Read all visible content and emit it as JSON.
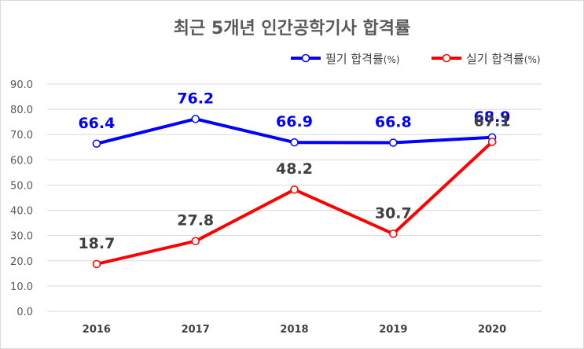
{
  "chart_data": {
    "type": "line",
    "title": "최근 5개년 인간공학기사 합격률",
    "categories": [
      "2016",
      "2017",
      "2018",
      "2019",
      "2020"
    ],
    "series": [
      {
        "name": "필기 합격률",
        "unit": "(%)",
        "color": "#0000ff",
        "label_color": "#0000ff",
        "values": [
          66.4,
          76.2,
          66.9,
          66.8,
          68.9
        ]
      },
      {
        "name": "실기 합격률",
        "unit": "(%)",
        "color": "#ff0000",
        "label_color": "#404040",
        "values": [
          18.7,
          27.8,
          48.2,
          30.7,
          67.1
        ]
      }
    ],
    "ylim": [
      0,
      90
    ],
    "yticks": [
      "0.0",
      "10.0",
      "20.0",
      "30.0",
      "40.0",
      "50.0",
      "60.0",
      "70.0",
      "80.0",
      "90.0"
    ],
    "grid": true,
    "legend_position": "top-right",
    "xlabel": "",
    "ylabel": ""
  }
}
